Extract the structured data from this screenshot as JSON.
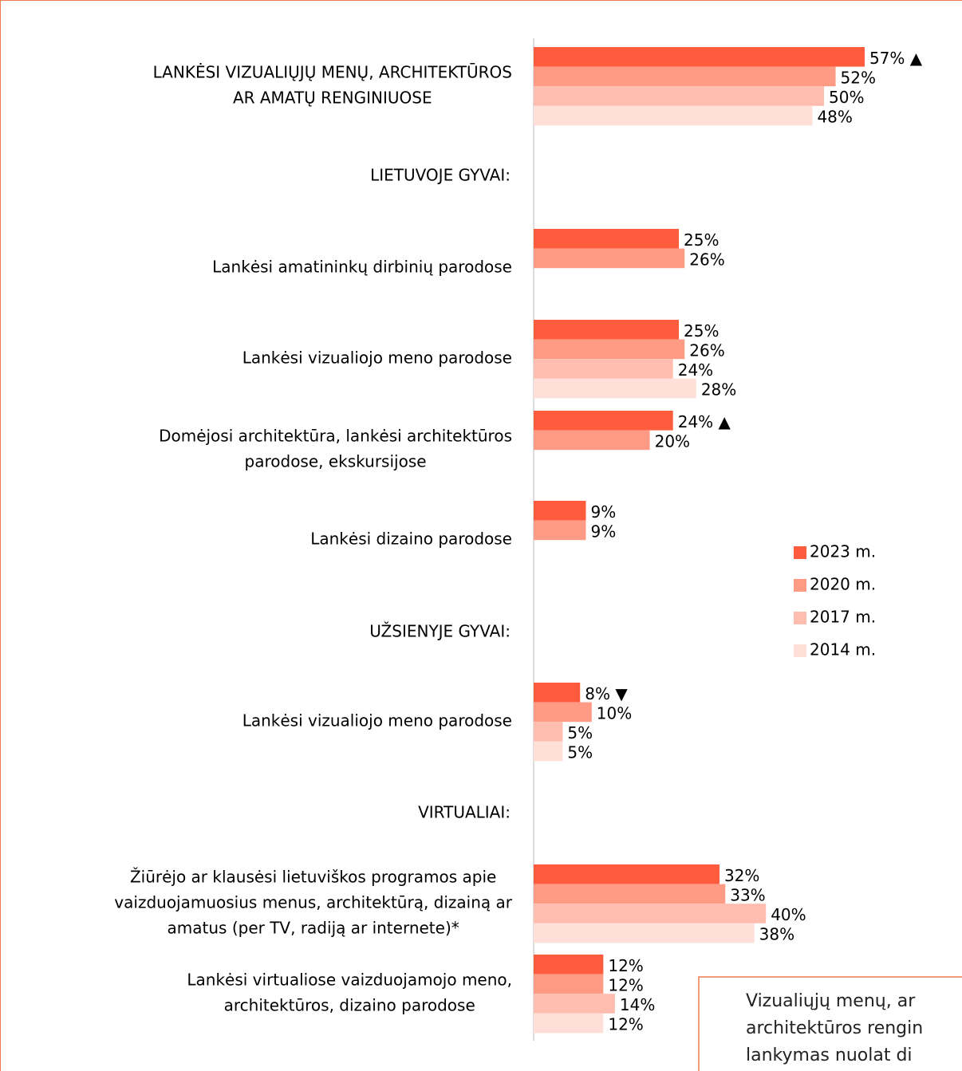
{
  "chart_data": {
    "type": "hbar",
    "categories": [
      [
        "LANKĖSI VIZUALIŲJŲ MENŲ, ARCHITEKTŪROS",
        "AR AMATŲ RENGINIUOSE"
      ],
      [
        "LIETUVOJE GYVAI:"
      ],
      [
        "Lankėsi amatininkų dirbinių parodose"
      ],
      [
        "Lankėsi vizualiojo meno parodose"
      ],
      [
        "Domėjosi architektūra, lankėsi architektūros",
        "parodose, ekskursijose"
      ],
      [
        "Lankėsi dizaino parodose"
      ],
      [
        "UŽSIENYJE GYVAI:"
      ],
      [
        "Lankėsi vizualiojo meno parodose"
      ],
      [
        "VIRTUALIAI:"
      ],
      [
        "Žiūrėjo ar klausėsi lietuviškos programos apie",
        "vaizduojamuosius menus, architektūrą, dizainą ar",
        "amatus (per TV, radiją ar internete)*"
      ],
      [
        "Lankėsi virtualiose vaizduojamojo meno,",
        "architektūros, dizaino parodose"
      ]
    ],
    "series": [
      {
        "name": "2023 m.",
        "color": "#ff5c3d",
        "values": [
          57,
          null,
          25,
          25,
          24,
          9,
          null,
          8,
          null,
          32,
          12
        ],
        "value_labels": [
          "57% ▲",
          null,
          "25%",
          "25%",
          "24% ▲",
          "9%",
          null,
          "8% ▼",
          null,
          "32%",
          "12%"
        ]
      },
      {
        "name": "2020 m.",
        "color": "#ff9a85",
        "values": [
          52,
          null,
          26,
          26,
          20,
          9,
          null,
          10,
          null,
          33,
          12
        ],
        "value_labels": [
          "52%",
          null,
          "26%",
          "26%",
          "20%",
          "9%",
          null,
          "10%",
          null,
          "33%",
          "12%"
        ]
      },
      {
        "name": "2017 m.",
        "color": "#ffbdb0",
        "values": [
          50,
          null,
          null,
          24,
          null,
          null,
          null,
          5,
          null,
          40,
          14
        ],
        "value_labels": [
          "50%",
          null,
          null,
          "24%",
          null,
          null,
          null,
          "5%",
          null,
          "40%",
          "14%"
        ]
      },
      {
        "name": "2014 m.",
        "color": "#ffdfd8",
        "values": [
          48,
          null,
          null,
          28,
          null,
          null,
          null,
          5,
          null,
          38,
          12
        ],
        "value_labels": [
          "48%",
          null,
          null,
          "28%",
          null,
          null,
          null,
          "5%",
          null,
          "38%",
          "12%"
        ]
      }
    ],
    "annotation": [
      "Vizualiųjų menų, ar",
      "architektūros rengin",
      "lankymas nuolat di"
    ]
  }
}
